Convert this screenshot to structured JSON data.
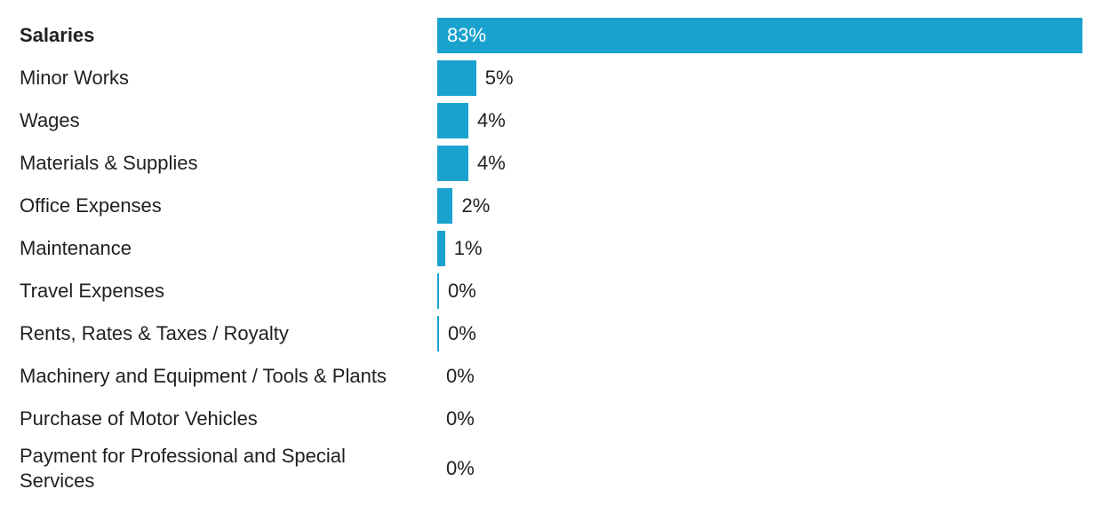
{
  "chart_data": {
    "type": "bar",
    "orientation": "horizontal",
    "bar_color": "#1aa2cf",
    "highlight_category": "Salaries",
    "categories": [
      "Salaries",
      "Minor Works",
      "Wages",
      "Materials & Supplies",
      "Office Expenses",
      "Maintenance",
      "Travel Expenses",
      "Rents, Rates & Taxes / Royalty",
      "Machinery and Equipment / Tools & Plants",
      "Purchase of Motor Vehicles",
      "Payment for Professional and Special Services"
    ],
    "values": [
      83,
      5,
      4,
      4,
      2,
      1,
      0,
      0,
      0,
      0,
      0
    ],
    "value_labels": [
      "83%",
      "5%",
      "4%",
      "4%",
      "2%",
      "1%",
      "0%",
      "0%",
      "0%",
      "0%",
      "0%"
    ],
    "unit": "%",
    "xlim": [
      0,
      83
    ],
    "grid": false,
    "legend": "none"
  }
}
